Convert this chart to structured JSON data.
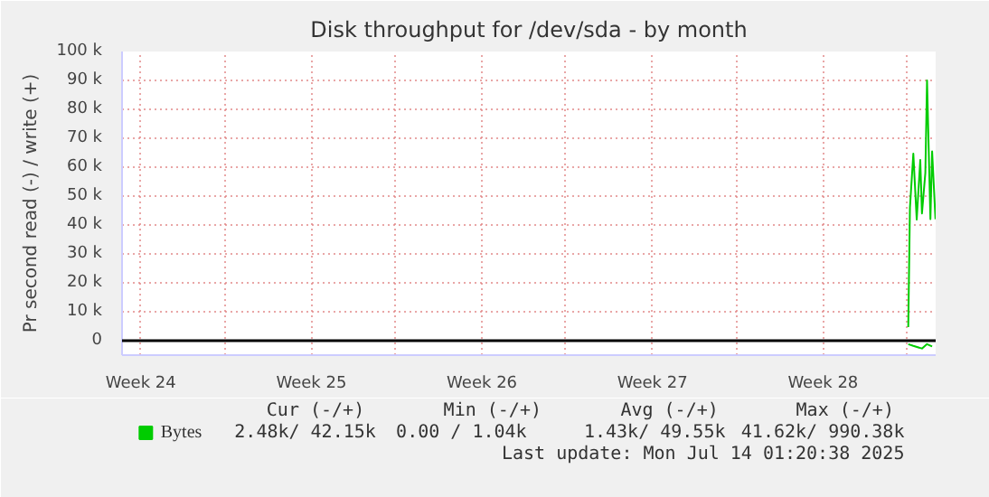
{
  "chart_data": {
    "type": "line",
    "title": "Disk throughput for /dev/sda - by month",
    "ylabel": "Pr second read (-) / write (+)",
    "xlim": [
      "2025-06-10T16:00",
      "2025-07-14T01:30"
    ],
    "xticks": [
      {
        "value": "2025-06-11T10:30",
        "label": "Week 24"
      },
      {
        "value": "2025-06-14T21:00",
        "label": null
      },
      {
        "value": "2025-06-18T10:30",
        "label": "Week 25"
      },
      {
        "value": "2025-06-21T21:00",
        "label": null
      },
      {
        "value": "2025-06-25T10:30",
        "label": "Week 26"
      },
      {
        "value": "2025-06-28T21:00",
        "label": null
      },
      {
        "value": "2025-07-02T10:30",
        "label": "Week 27"
      },
      {
        "value": "2025-07-05T21:00",
        "label": null
      },
      {
        "value": "2025-07-09T10:30",
        "label": "Week 28"
      },
      {
        "value": "2025-07-12T21:00",
        "label": null
      }
    ],
    "ylim": [
      -5000,
      100000
    ],
    "yticks": [
      {
        "value": 0,
        "label": "0"
      },
      {
        "value": 10000,
        "label": "10 k"
      },
      {
        "value": 20000,
        "label": "20 k"
      },
      {
        "value": 30000,
        "label": "30 k"
      },
      {
        "value": 40000,
        "label": "40 k"
      },
      {
        "value": 50000,
        "label": "50 k"
      },
      {
        "value": 60000,
        "label": "60 k"
      },
      {
        "value": 70000,
        "label": "70 k"
      },
      {
        "value": 80000,
        "label": "80 k"
      },
      {
        "value": 90000,
        "label": "90 k"
      },
      {
        "value": 100000,
        "label": "100 k"
      }
    ],
    "grid": true,
    "legend": "bottom left",
    "series": [
      {
        "name": "Bytes",
        "color": "#00cc00",
        "x": [
          "2025-07-12T22:30",
          "2025-07-13T00:10",
          "2025-07-13T03:30",
          "2025-07-13T06:50",
          "2025-07-13T10:20",
          "2025-07-13T12:00",
          "2025-07-13T15:20",
          "2025-07-13T17:00",
          "2025-07-13T20:20",
          "2025-07-13T22:00",
          "2025-07-14T01:20"
        ],
        "values": [
          4700,
          46000,
          64700,
          41900,
          62500,
          44000,
          58000,
          90000,
          42000,
          65500,
          42000
        ]
      },
      {
        "color": "#00cc00",
        "x": [
          "2025-07-12T22:30",
          "2025-07-13T03:30",
          "2025-07-13T12:00",
          "2025-07-13T17:00",
          "2025-07-13T22:00"
        ],
        "values": [
          -1200,
          -1800,
          -2700,
          -1200,
          -2000
        ]
      }
    ],
    "annotations": [
      "Cur (-/+)",
      "Min (-/+)",
      "Avg (-/+)",
      "Max (-/+)",
      "2.48k/  42.15k",
      "0.00 /    1.04k",
      "1.43k/  49.55k",
      "41.62k/ 990.38k",
      "Last update: Mon Jul 14 01:20:38 2025"
    ]
  }
}
